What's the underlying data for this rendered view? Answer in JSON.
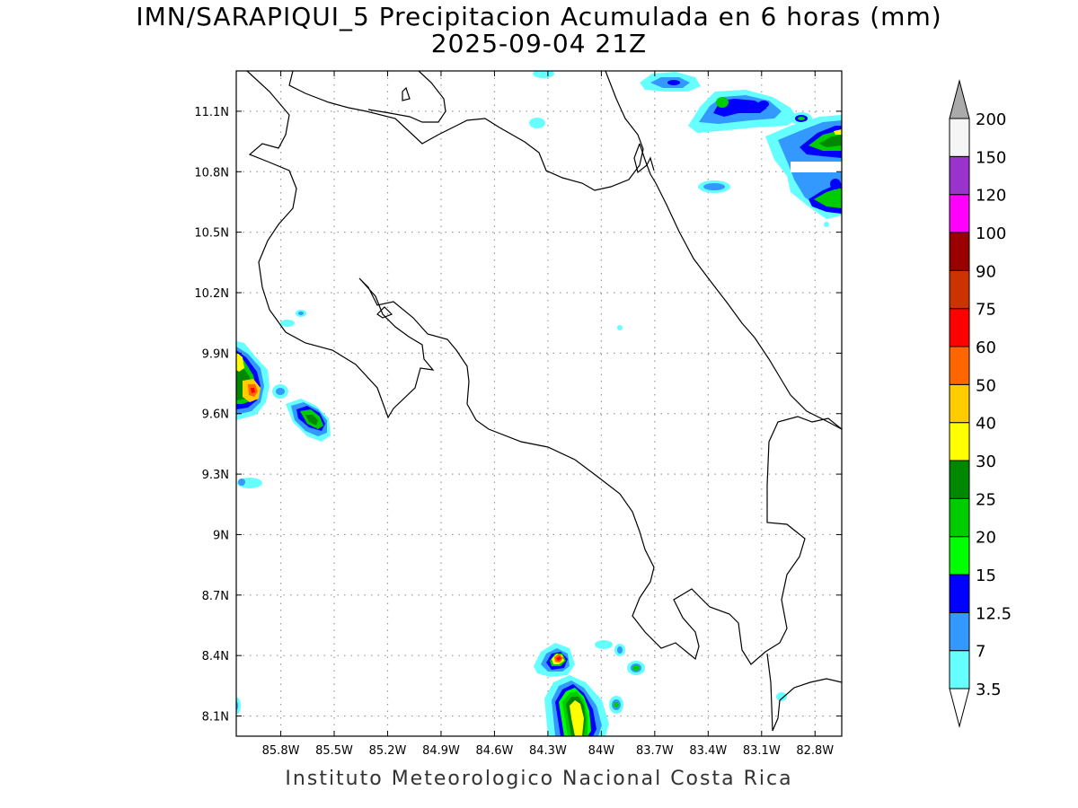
{
  "title": {
    "line1": "IMN/SARAPIQUI_5 Precipitacion Acumulada en 6 horas (mm)",
    "line2": "2025-09-04 21Z"
  },
  "footer": "Instituto Meteorologico Nacional Costa Rica",
  "map": {
    "lon_range": [
      -86.05,
      -82.65
    ],
    "lat_range": [
      8.0,
      11.3
    ],
    "grid": "dotted",
    "lat_ticks": [
      {
        "value": 11.1,
        "label": "11.1N"
      },
      {
        "value": 10.8,
        "label": "10.8N"
      },
      {
        "value": 10.5,
        "label": "10.5N"
      },
      {
        "value": 10.2,
        "label": "10.2N"
      },
      {
        "value": 9.9,
        "label": "9.9N"
      },
      {
        "value": 9.6,
        "label": "9.6N"
      },
      {
        "value": 9.3,
        "label": "9.3N"
      },
      {
        "value": 9.0,
        "label": "9N"
      },
      {
        "value": 8.7,
        "label": "8.7N"
      },
      {
        "value": 8.4,
        "label": "8.4N"
      },
      {
        "value": 8.1,
        "label": "8.1N"
      }
    ],
    "lon_ticks": [
      {
        "value": -85.8,
        "label": "85.8W"
      },
      {
        "value": -85.5,
        "label": "85.5W"
      },
      {
        "value": -85.2,
        "label": "85.2W"
      },
      {
        "value": -84.9,
        "label": "84.9W"
      },
      {
        "value": -84.6,
        "label": "84.6W"
      },
      {
        "value": -84.3,
        "label": "84.3W"
      },
      {
        "value": -84.0,
        "label": "84W"
      },
      {
        "value": -83.7,
        "label": "83.7W"
      },
      {
        "value": -83.4,
        "label": "83.4W"
      },
      {
        "value": -83.1,
        "label": "83.1W"
      },
      {
        "value": -82.8,
        "label": "82.8W"
      }
    ]
  },
  "colorbar": {
    "levels": [
      {
        "label": "3.5",
        "color": "#66ffff"
      },
      {
        "label": "7",
        "color": "#3399ff"
      },
      {
        "label": "12.5",
        "color": "#0000ff"
      },
      {
        "label": "15",
        "color": "#00ff00"
      },
      {
        "label": "20",
        "color": "#00cc00"
      },
      {
        "label": "25",
        "color": "#008800"
      },
      {
        "label": "30",
        "color": "#ffff00"
      },
      {
        "label": "40",
        "color": "#ffcc00"
      },
      {
        "label": "50",
        "color": "#ff6600"
      },
      {
        "label": "60",
        "color": "#ff0000"
      },
      {
        "label": "75",
        "color": "#cc3300"
      },
      {
        "label": "90",
        "color": "#990000"
      },
      {
        "label": "100",
        "color": "#ff00ff"
      },
      {
        "label": "120",
        "color": "#9933cc"
      },
      {
        "label": "150",
        "color": "#f5f5f5"
      },
      {
        "label": "200",
        "color": "#aaaaaa"
      }
    ]
  },
  "precipitation_cells": [
    {
      "name": "west-coast-cell",
      "lon": -86.02,
      "lat": 9.75,
      "max_mm": 60
    },
    {
      "name": "nicoya-offshore-cell",
      "lon": -85.53,
      "lat": 9.58,
      "max_mm": 25
    },
    {
      "name": "south-coast-cell",
      "lon": -84.03,
      "lat": 8.2,
      "max_mm": 40
    },
    {
      "name": "south-offshore-cell",
      "lon": -84.12,
      "lat": 8.4,
      "max_mm": 60
    },
    {
      "name": "caribbean-cell",
      "lon": -82.72,
      "lat": 10.98,
      "max_mm": 25
    }
  ]
}
